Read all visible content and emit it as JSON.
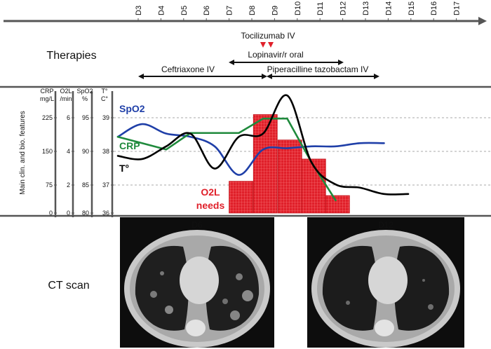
{
  "days": [
    "D3",
    "D4",
    "D5",
    "D6",
    "D7",
    "D8",
    "D9",
    "D10",
    "D11",
    "D12",
    "D13",
    "D14",
    "D15",
    "D16",
    "D17"
  ],
  "sections": {
    "therapies": "Therapies",
    "ct_scan": "CT scan"
  },
  "therapies": {
    "tocilizumab": "Tocilizumab IV",
    "lopinavir": "Lopinavir/r oral",
    "ceftriaxone": "Ceftriaxone IV",
    "piperacilline": "Piperacilline tazobactam IV"
  },
  "y_axis_title": "Main clin. and bio. features",
  "axes": [
    {
      "header1": "CRP",
      "header2": "mg/L",
      "ticks": [
        "225",
        "150",
        "75",
        "0"
      ]
    },
    {
      "header1": "O2L",
      "header2": "/min",
      "ticks": [
        "6",
        "4",
        "2",
        "0"
      ]
    },
    {
      "header1": "SpO2",
      "header2": "%",
      "ticks": [
        "95",
        "90",
        "85",
        "80"
      ]
    },
    {
      "header1": "T°",
      "header2": "C°",
      "ticks": [
        "39",
        "38",
        "37",
        "36"
      ]
    }
  ],
  "series_labels": {
    "spo2": "SpO2",
    "crp": "CRP",
    "temp": "T°",
    "o2l_line1": "O2L",
    "o2l_line2": "needs"
  },
  "colors": {
    "spo2": "#1f3fa8",
    "crp": "#1f8a3c",
    "temp": "#000000",
    "o2l": "#e0202a",
    "tocilizumab_marker": "#e0202a"
  },
  "chart_data": {
    "type": "line",
    "x_unit": "day",
    "series": [
      {
        "name": "SpO2",
        "unit": "%",
        "x": [
          7,
          8,
          9,
          10,
          11,
          12,
          13,
          14,
          15,
          16,
          17,
          18
        ],
        "values": [
          92,
          94,
          92.5,
          92,
          90.5,
          86,
          90,
          90.2,
          90.5,
          90.5,
          91,
          91
        ]
      },
      {
        "name": "CRP",
        "unit": "mg/L",
        "x": [
          7,
          8,
          9,
          10,
          11,
          12,
          13,
          14,
          15,
          16
        ],
        "values": [
          180,
          165,
          150,
          189,
          189,
          189,
          223,
          223,
          120,
          30
        ]
      },
      {
        "name": "T°",
        "unit": "C°",
        "x": [
          7,
          8,
          9,
          10,
          11,
          12,
          13,
          14,
          15,
          16,
          17,
          18,
          19
        ],
        "values": [
          37.8,
          37.7,
          38.1,
          38.5,
          37.4,
          38.4,
          38.5,
          39.7,
          37.6,
          36.9,
          36.8,
          36.6,
          36.6
        ]
      },
      {
        "name": "O2L needs",
        "unit": "L/min",
        "type": "bar",
        "x": [
          11,
          12,
          13,
          14,
          15
        ],
        "values": [
          2,
          6.2,
          4.6,
          3.4,
          1.1
        ]
      }
    ],
    "tocilizumab_days": [
      8.8,
      9.1
    ]
  },
  "ct_scans": [
    {
      "label": "D6"
    },
    {
      "label": "D12"
    }
  ]
}
